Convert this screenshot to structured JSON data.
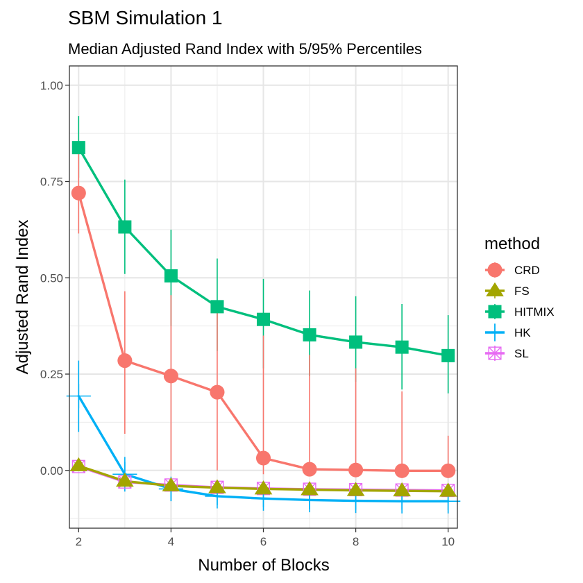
{
  "chart_data": {
    "type": "line",
    "title": "SBM Simulation 1",
    "subtitle": "Median Adjusted Rand Index with 5/95% Percentiles",
    "xlabel": "Number of Blocks",
    "ylabel": "Adjusted Rand Index",
    "xlim": [
      1.8,
      10.2
    ],
    "ylim": [
      -0.15,
      1.05
    ],
    "x_ticks": [
      2,
      4,
      6,
      8,
      10
    ],
    "x_tick_labels": [
      "2",
      "4",
      "6",
      "8",
      "10"
    ],
    "y_ticks": [
      0,
      0.25,
      0.5,
      0.75,
      1.0
    ],
    "y_tick_labels": [
      "0.00",
      "0.25",
      "0.50",
      "0.75",
      "1.00"
    ],
    "x": [
      2,
      3,
      4,
      5,
      6,
      7,
      8,
      9,
      10
    ],
    "legend_title": "method",
    "legend_position": "right",
    "series": [
      {
        "name": "CRD",
        "color": "#F8766D",
        "shape": "circle",
        "values": [
          0.72,
          0.285,
          0.245,
          0.203,
          0.032,
          0.003,
          0.001,
          -0.001,
          -0.001
        ],
        "lower": [
          0.615,
          0.095,
          0.0,
          0.0,
          -0.01,
          -0.015,
          -0.015,
          -0.015,
          -0.015
        ],
        "upper": [
          0.84,
          0.465,
          0.455,
          0.43,
          0.35,
          0.3,
          0.265,
          0.205,
          0.09
        ]
      },
      {
        "name": "FS",
        "color": "#A3A500",
        "shape": "triangle",
        "values": [
          0.012,
          -0.028,
          -0.04,
          -0.045,
          -0.048,
          -0.05,
          -0.052,
          -0.053,
          -0.054
        ],
        "lower": [
          0.002,
          -0.04,
          -0.05,
          -0.055,
          -0.058,
          -0.06,
          -0.062,
          -0.063,
          -0.064
        ],
        "upper": [
          0.022,
          -0.016,
          -0.03,
          -0.035,
          -0.038,
          -0.04,
          -0.042,
          -0.043,
          -0.044
        ]
      },
      {
        "name": "HITMIX",
        "color": "#00BF7D",
        "shape": "square",
        "values": [
          0.838,
          0.632,
          0.505,
          0.425,
          0.392,
          0.352,
          0.333,
          0.32,
          0.298
        ],
        "lower": [
          0.76,
          0.51,
          0.375,
          0.31,
          0.265,
          0.245,
          0.23,
          0.21,
          0.2
        ],
        "upper": [
          0.92,
          0.755,
          0.625,
          0.55,
          0.497,
          0.467,
          0.452,
          0.432,
          0.403
        ]
      },
      {
        "name": "HK",
        "color": "#00B0F6",
        "shape": "plus",
        "values": [
          0.193,
          -0.01,
          -0.048,
          -0.067,
          -0.073,
          -0.077,
          -0.079,
          -0.08,
          -0.08
        ],
        "lower": [
          0.1,
          -0.055,
          -0.08,
          -0.09,
          -0.095,
          -0.1,
          -0.102,
          -0.102,
          -0.103
        ],
        "upper": [
          0.285,
          0.035,
          -0.025,
          -0.045,
          -0.05,
          -0.055,
          -0.057,
          -0.058,
          -0.058
        ]
      },
      {
        "name": "SL",
        "color": "#E76BF3",
        "shape": "square-cross",
        "values": [
          0.01,
          -0.03,
          -0.038,
          -0.044,
          -0.047,
          -0.049,
          -0.05,
          -0.051,
          -0.052
        ],
        "lower": [
          0.0,
          -0.042,
          -0.048,
          -0.054,
          -0.057,
          -0.059,
          -0.06,
          -0.061,
          -0.062
        ],
        "upper": [
          0.02,
          -0.018,
          -0.028,
          -0.034,
          -0.037,
          -0.039,
          -0.04,
          -0.041,
          -0.042
        ]
      }
    ]
  }
}
